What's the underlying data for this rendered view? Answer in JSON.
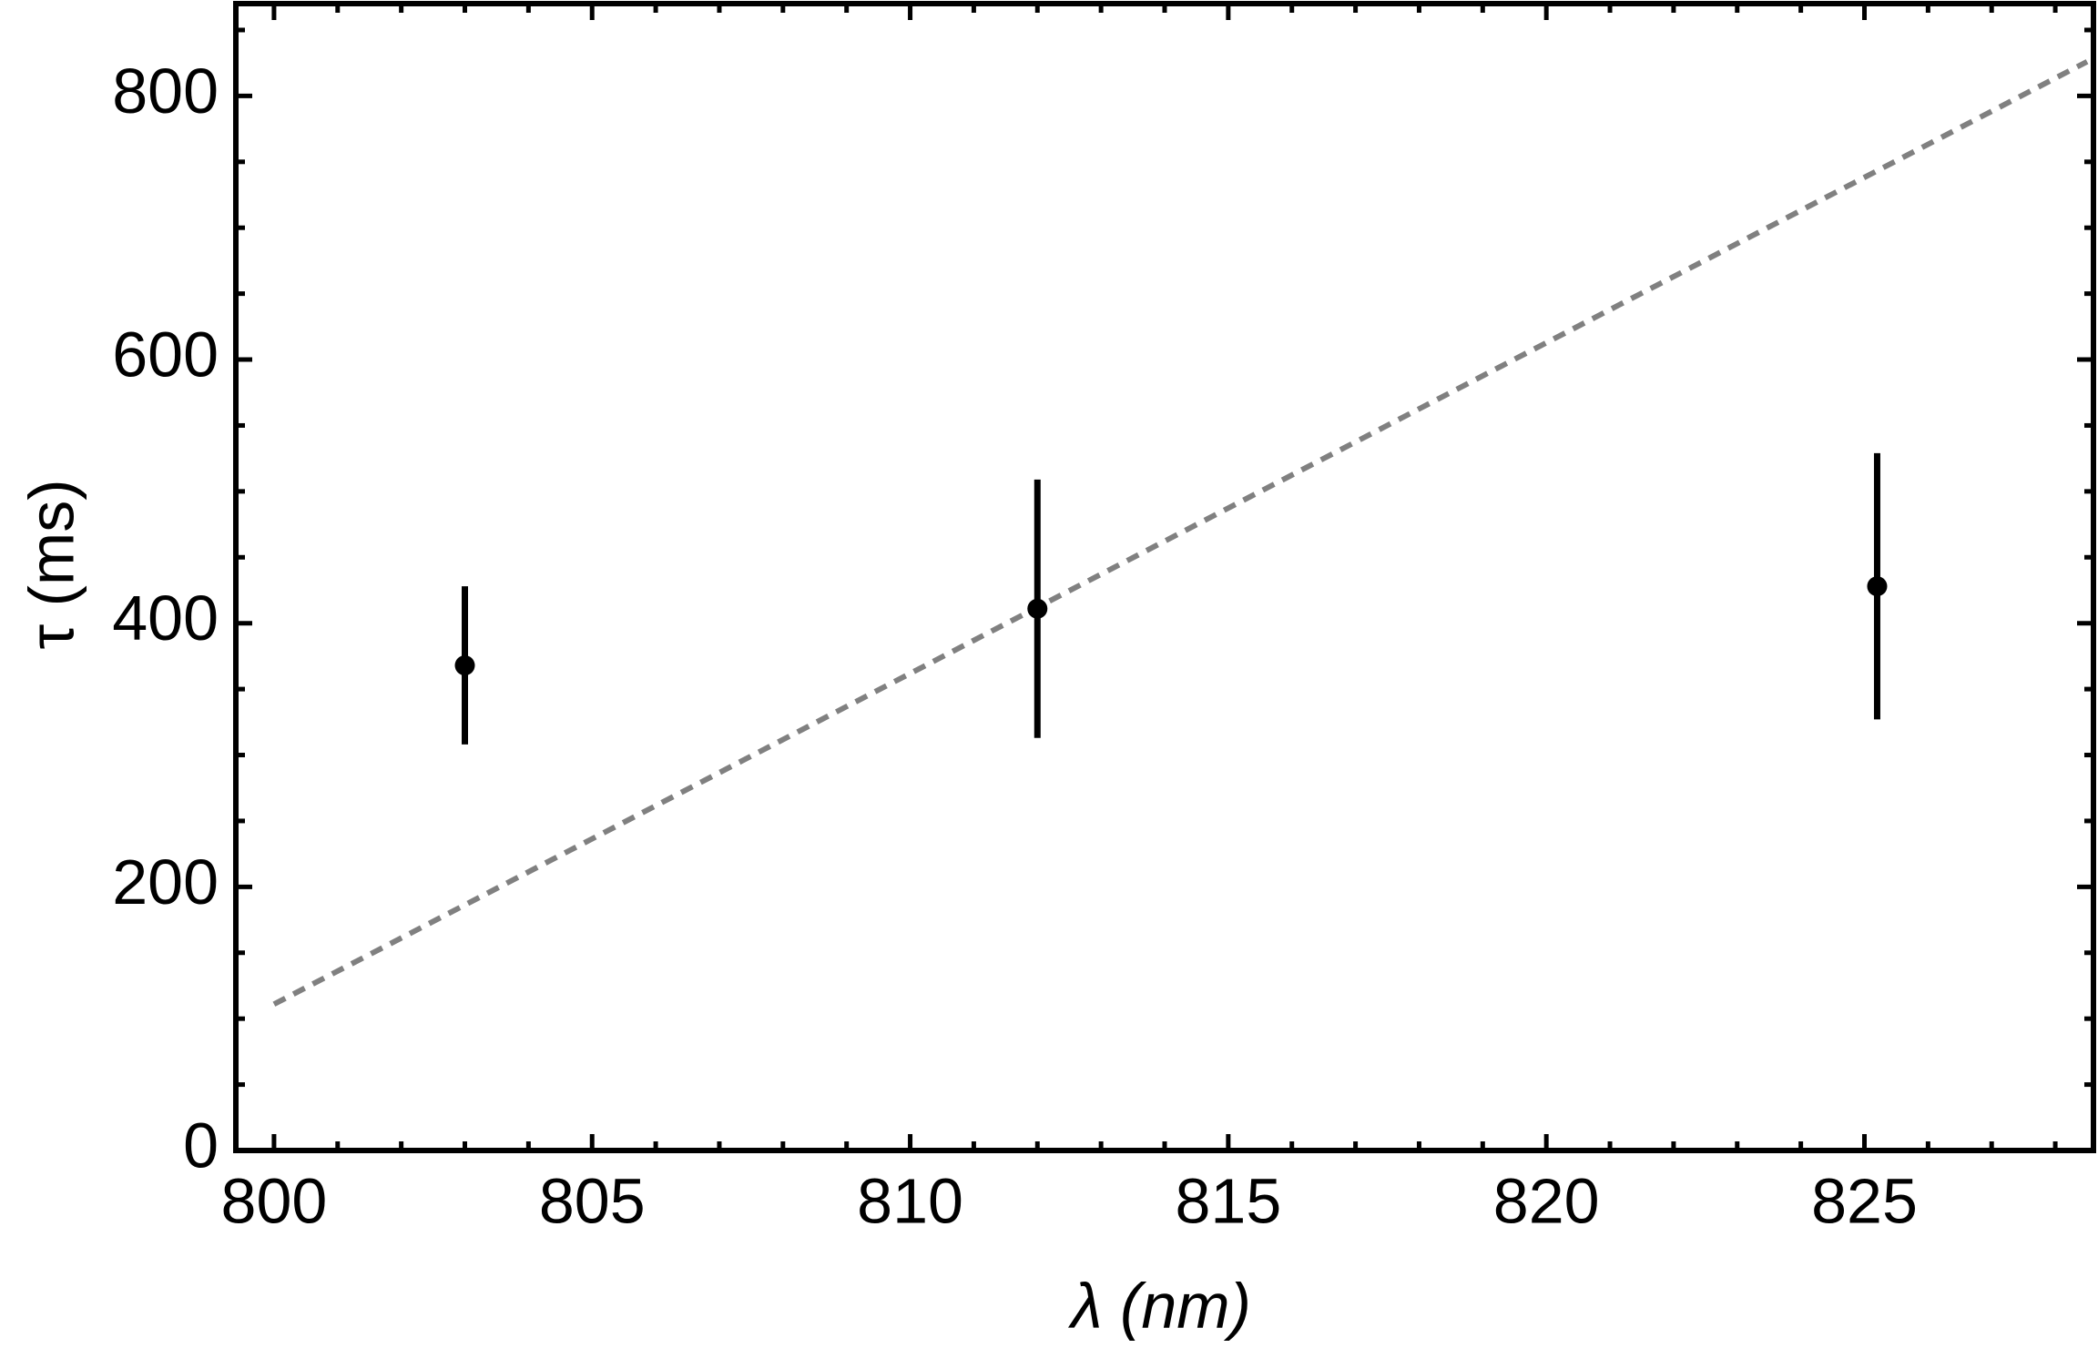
{
  "chart_data": {
    "type": "scatter",
    "xlabel": "λ (nm)",
    "ylabel": "τ (ms)",
    "xlim": [
      799.4,
      828.6
    ],
    "ylim": [
      0,
      870
    ],
    "xticks": [
      800,
      805,
      810,
      815,
      820,
      825
    ],
    "yticks": [
      0,
      200,
      400,
      600,
      800
    ],
    "xminorticks": [
      801,
      802,
      803,
      804,
      806,
      807,
      808,
      809,
      811,
      812,
      813,
      814,
      816,
      817,
      818,
      819,
      821,
      822,
      823,
      824,
      826,
      827,
      828
    ],
    "yminorticks": [
      50,
      100,
      150,
      250,
      300,
      350,
      450,
      500,
      550,
      650,
      700,
      750,
      850
    ],
    "points": {
      "color": "#000000",
      "x": [
        803,
        812,
        825.2
      ],
      "y": [
        368,
        411,
        428
      ],
      "error": [
        60,
        98,
        101
      ]
    },
    "fit": {
      "color": "#808080",
      "dashed": true,
      "x": [
        800,
        828.5
      ],
      "y": [
        111,
        826
      ]
    }
  }
}
